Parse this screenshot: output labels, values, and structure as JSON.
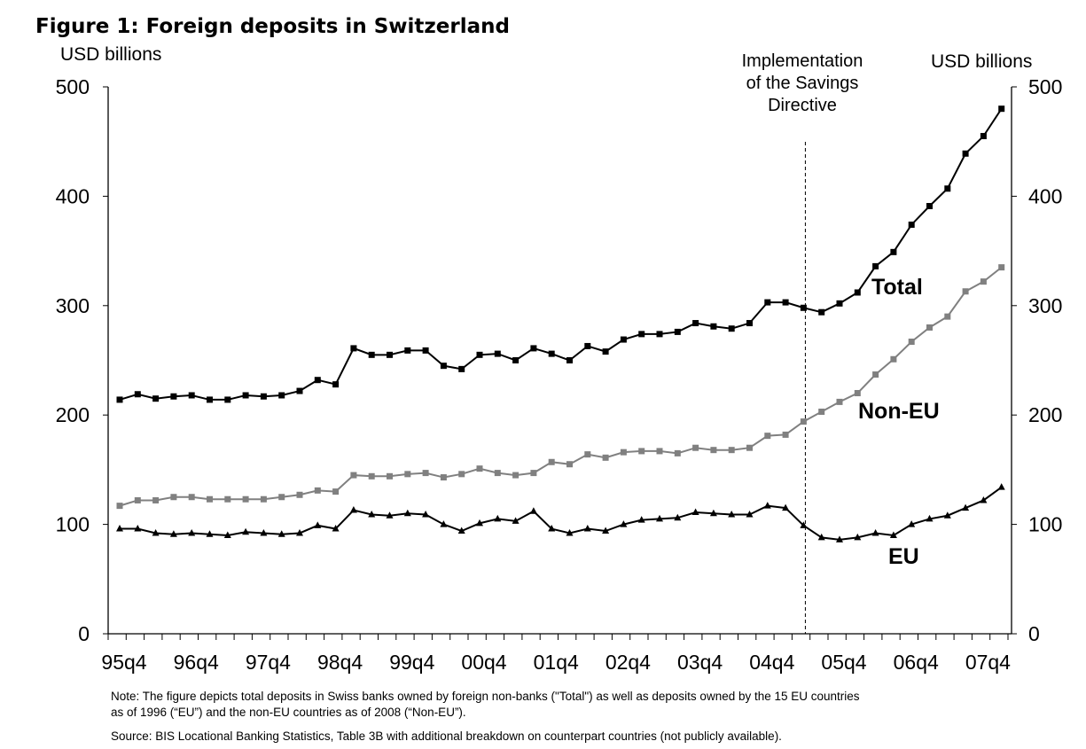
{
  "chart_data": {
    "type": "line",
    "title": "Figure 1: Foreign deposits in Switzerland",
    "ylabel_left": "USD billions",
    "ylabel_right": "USD billions",
    "ylim": [
      0,
      500
    ],
    "yticks": [
      "0",
      "100",
      "200",
      "300",
      "400",
      "500"
    ],
    "xtick_labels": [
      "95q4",
      "96q4",
      "97q4",
      "98q4",
      "99q4",
      "00q4",
      "01q4",
      "02q4",
      "03q4",
      "04q4",
      "05q4",
      "06q4",
      "07q4"
    ],
    "x_start": "95q4",
    "n_points": 50,
    "annotation": {
      "lines": [
        "Implementation",
        "of the Savings",
        "Directive"
      ],
      "at_index": 38.1
    },
    "series": [
      {
        "name": "Total",
        "color": "#000000",
        "marker": "square",
        "values": [
          214,
          219,
          215,
          217,
          218,
          214,
          214,
          218,
          217,
          218,
          222,
          232,
          228,
          261,
          255,
          255,
          259,
          259,
          245,
          242,
          255,
          256,
          250,
          261,
          256,
          250,
          263,
          258,
          269,
          274,
          274,
          276,
          284,
          281,
          279,
          284,
          303,
          303,
          298,
          294,
          302,
          312,
          336,
          349,
          374,
          391,
          407,
          439,
          455,
          480
        ]
      },
      {
        "name": "Non-EU",
        "color": "#808080",
        "marker": "square",
        "values": [
          117,
          122,
          122,
          125,
          125,
          123,
          123,
          123,
          123,
          125,
          127,
          131,
          130,
          145,
          144,
          144,
          146,
          147,
          143,
          146,
          151,
          147,
          145,
          147,
          157,
          155,
          164,
          161,
          166,
          167,
          167,
          165,
          170,
          168,
          168,
          170,
          181,
          182,
          194,
          203,
          212,
          220,
          237,
          251,
          267,
          280,
          290,
          313,
          322,
          335
        ]
      },
      {
        "name": "EU",
        "color": "#000000",
        "marker": "triangle",
        "values": [
          96,
          96,
          92,
          91,
          92,
          91,
          90,
          93,
          92,
          91,
          92,
          99,
          96,
          113,
          109,
          108,
          110,
          109,
          100,
          94,
          101,
          105,
          103,
          112,
          96,
          92,
          96,
          94,
          100,
          104,
          105,
          106,
          111,
          110,
          109,
          109,
          117,
          115,
          99,
          88,
          86,
          88,
          92,
          90,
          100,
          105,
          108,
          115,
          122,
          134
        ]
      }
    ],
    "notes": [
      "Note: The figure depicts total deposits in Swiss banks owned by foreign non-banks (\"Total\") as well as deposits owned by the 15 EU countries",
      "as of 1996 (“EU”) and the non-EU countries as of 2008 (“Non-EU”).",
      "Source: BIS Locational Banking Statistics, Table 3B with additional breakdown on counterpart countries (not publicly available)."
    ]
  }
}
